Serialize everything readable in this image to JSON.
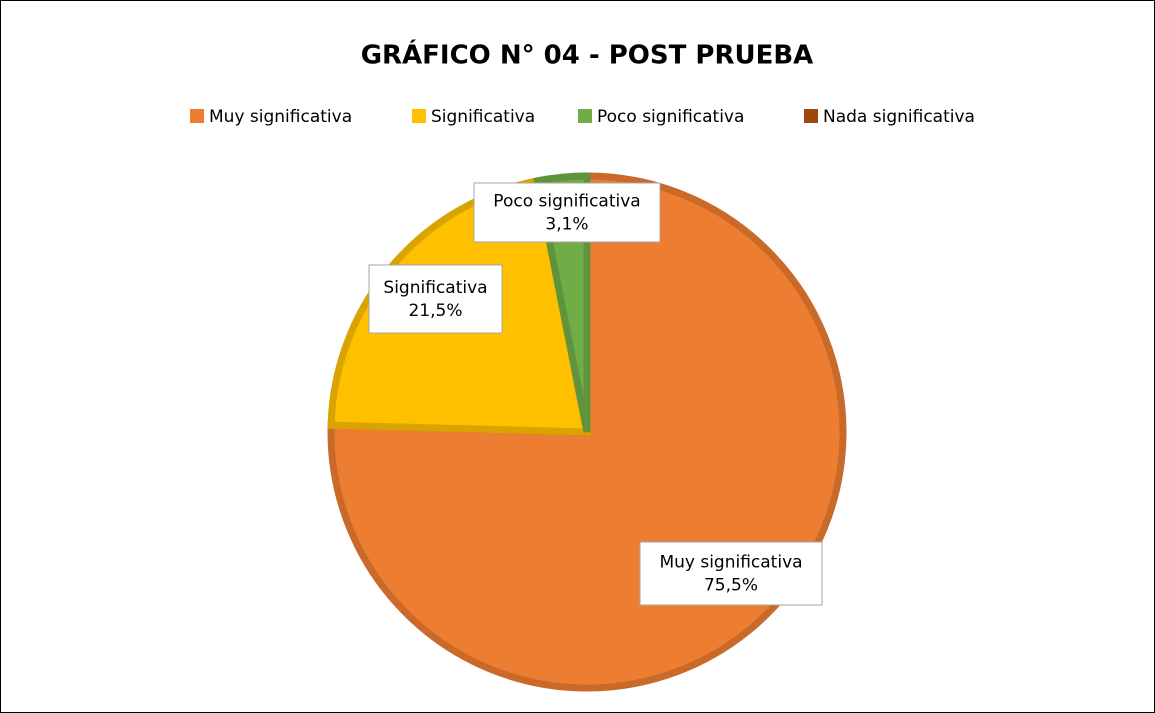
{
  "chart_data": {
    "type": "pie",
    "title": "GRÁFICO N° 04 - POST PRUEBA",
    "categories": [
      "Muy significativa",
      "Significativa",
      "Poco significativa",
      "Nada significativa"
    ],
    "values": [
      75.5,
      21.5,
      3.1,
      0
    ],
    "value_labels": [
      "75,5%",
      "21,5%",
      "3,1%",
      null
    ],
    "colors": [
      "#ED7D31",
      "#FFC000",
      "#70AD47",
      "#9E480E"
    ],
    "legend": "top"
  }
}
